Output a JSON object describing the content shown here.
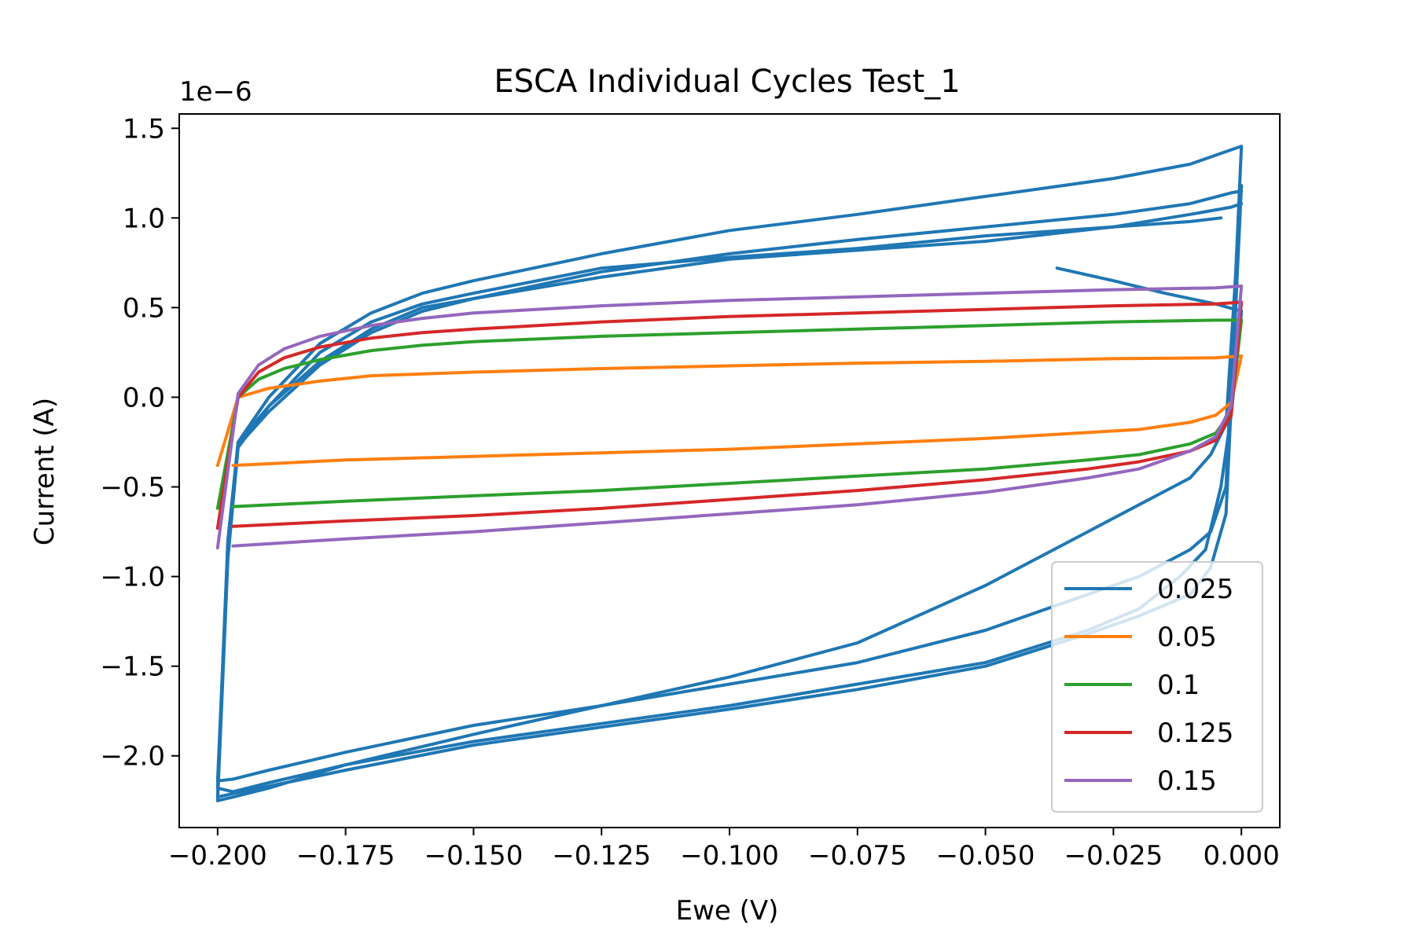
{
  "chart_data": {
    "type": "line",
    "title": "ESCA Individual Cycles Test_1",
    "xlabel": "Ewe (V)",
    "ylabel": "Current (A)",
    "y_offset_text": "1e−6",
    "xlim": [
      -0.2075,
      0.0075
    ],
    "ylim": [
      -2.4,
      1.58
    ],
    "x_ticks": [
      -0.2,
      -0.175,
      -0.15,
      -0.125,
      -0.1,
      -0.075,
      -0.05,
      -0.025,
      0.0
    ],
    "x_tick_labels": [
      "−0.200",
      "−0.175",
      "−0.150",
      "−0.125",
      "−0.100",
      "−0.075",
      "−0.050",
      "−0.025",
      "0.000"
    ],
    "y_ticks": [
      -2.0,
      -1.5,
      -1.0,
      -0.5,
      0.0,
      0.5,
      1.0,
      1.5
    ],
    "y_tick_labels": [
      "−2.0",
      "−1.5",
      "−1.0",
      "−0.5",
      "0.0",
      "0.5",
      "1.0",
      "1.5"
    ],
    "grid": false,
    "legend_position": "lower-right",
    "series": [
      {
        "name": "0.025",
        "color": "#1f77b4",
        "cycles": [
          {
            "x": [
              -0.036,
              -0.025,
              -0.015,
              -0.005,
              0.0,
              -0.002,
              -0.004,
              -0.007,
              -0.012,
              -0.02,
              -0.03,
              -0.05,
              -0.075,
              -0.1,
              -0.125,
              -0.15,
              -0.175,
              -0.19,
              -0.197,
              -0.2,
              -0.198,
              -0.196,
              -0.19,
              -0.18,
              -0.17,
              -0.16,
              -0.15,
              -0.125,
              -0.1,
              -0.075,
              -0.05,
              -0.025,
              -0.01,
              -0.002,
              0.0
            ],
            "y": [
              0.72,
              0.65,
              0.58,
              0.52,
              0.48,
              -0.1,
              -0.5,
              -0.85,
              -1.0,
              -1.18,
              -1.3,
              -1.48,
              -1.6,
              -1.72,
              -1.82,
              -1.92,
              -2.05,
              -2.15,
              -2.2,
              -2.18,
              -0.8,
              -0.25,
              -0.05,
              0.2,
              0.38,
              0.5,
              0.55,
              0.67,
              0.77,
              0.82,
              0.87,
              0.95,
              1.02,
              1.06,
              1.08
            ]
          },
          {
            "x": [
              0.0,
              -0.003,
              -0.006,
              -0.01,
              -0.02,
              -0.03,
              -0.05,
              -0.075,
              -0.1,
              -0.125,
              -0.15,
              -0.175,
              -0.19,
              -0.197,
              -0.2,
              -0.198,
              -0.196,
              -0.19,
              -0.18,
              -0.17,
              -0.16,
              -0.15,
              -0.125,
              -0.1,
              -0.075,
              -0.05,
              -0.025,
              -0.01,
              -0.002,
              0.0
            ],
            "y": [
              1.18,
              -0.65,
              -0.95,
              -1.1,
              -1.22,
              -1.32,
              -1.5,
              -1.63,
              -1.74,
              -1.84,
              -1.94,
              -2.08,
              -2.17,
              -2.21,
              -2.23,
              -0.8,
              -0.27,
              -0.08,
              0.18,
              0.36,
              0.48,
              0.55,
              0.7,
              0.8,
              0.88,
              0.95,
              1.02,
              1.08,
              1.14,
              1.15
            ]
          },
          {
            "x": [
              0.0,
              -0.003,
              -0.006,
              -0.01,
              -0.02,
              -0.03,
              -0.05,
              -0.075,
              -0.1,
              -0.125,
              -0.15,
              -0.175,
              -0.19,
              -0.197,
              -0.2,
              -0.198,
              -0.196,
              -0.19,
              -0.18,
              -0.17,
              -0.16,
              -0.15,
              -0.125,
              -0.1,
              -0.075,
              -0.05,
              -0.025,
              -0.01,
              -0.002,
              0.0
            ],
            "y": [
              1.4,
              -0.5,
              -0.75,
              -0.85,
              -1.0,
              -1.1,
              -1.3,
              -1.48,
              -1.6,
              -1.72,
              -1.83,
              -1.98,
              -2.08,
              -2.13,
              -2.14,
              -0.85,
              -0.25,
              0.0,
              0.3,
              0.47,
              0.58,
              0.65,
              0.8,
              0.93,
              1.02,
              1.12,
              1.22,
              1.3,
              1.38,
              1.4
            ]
          },
          {
            "x": [
              0.0,
              -0.003,
              -0.006,
              -0.01,
              -0.02,
              -0.03,
              -0.05,
              -0.075,
              -0.1,
              -0.125,
              -0.15,
              -0.175,
              -0.19,
              -0.197,
              -0.2,
              -0.198,
              -0.196,
              -0.19,
              -0.18,
              -0.17,
              -0.16,
              -0.15,
              -0.125,
              -0.1,
              -0.075,
              -0.05,
              -0.025,
              -0.01,
              -0.004
            ],
            "y": [
              1.18,
              -0.15,
              -0.32,
              -0.45,
              -0.6,
              -0.75,
              -1.05,
              -1.37,
              -1.56,
              -1.72,
              -1.88,
              -2.05,
              -2.18,
              -2.23,
              -2.25,
              -0.9,
              -0.28,
              -0.05,
              0.25,
              0.42,
              0.52,
              0.58,
              0.72,
              0.78,
              0.83,
              0.9,
              0.95,
              0.98,
              1.0
            ]
          }
        ]
      },
      {
        "name": "0.05",
        "color": "#ff7f0e",
        "cycles": [
          {
            "x": [
              -0.2,
              -0.196,
              -0.19,
              -0.18,
              -0.17,
              -0.15,
              -0.125,
              -0.1,
              -0.075,
              -0.05,
              -0.025,
              -0.005,
              0.0,
              -0.002,
              -0.005,
              -0.01,
              -0.02,
              -0.05,
              -0.075,
              -0.1,
              -0.125,
              -0.15,
              -0.175,
              -0.197
            ],
            "y": [
              -0.38,
              0.0,
              0.05,
              0.09,
              0.12,
              0.14,
              0.16,
              0.175,
              0.19,
              0.2,
              0.215,
              0.22,
              0.23,
              -0.03,
              -0.1,
              -0.14,
              -0.18,
              -0.23,
              -0.26,
              -0.29,
              -0.31,
              -0.33,
              -0.35,
              -0.38
            ]
          }
        ]
      },
      {
        "name": "0.1",
        "color": "#2ca02c",
        "cycles": [
          {
            "x": [
              -0.2,
              -0.196,
              -0.192,
              -0.187,
              -0.18,
              -0.17,
              -0.16,
              -0.15,
              -0.125,
              -0.1,
              -0.075,
              -0.05,
              -0.025,
              -0.005,
              0.0,
              -0.002,
              -0.005,
              -0.01,
              -0.02,
              -0.03,
              -0.05,
              -0.075,
              -0.1,
              -0.125,
              -0.15,
              -0.175,
              -0.197
            ],
            "y": [
              -0.62,
              0.0,
              0.1,
              0.16,
              0.21,
              0.26,
              0.29,
              0.31,
              0.34,
              0.36,
              0.38,
              0.4,
              0.42,
              0.43,
              0.43,
              -0.08,
              -0.2,
              -0.26,
              -0.32,
              -0.35,
              -0.4,
              -0.44,
              -0.48,
              -0.52,
              -0.55,
              -0.58,
              -0.61
            ]
          }
        ]
      },
      {
        "name": "0.125",
        "color": "#d62728",
        "cycles": [
          {
            "x": [
              -0.2,
              -0.196,
              -0.192,
              -0.187,
              -0.18,
              -0.17,
              -0.16,
              -0.15,
              -0.125,
              -0.1,
              -0.075,
              -0.05,
              -0.025,
              -0.005,
              0.0,
              -0.002,
              -0.005,
              -0.01,
              -0.02,
              -0.03,
              -0.05,
              -0.075,
              -0.1,
              -0.125,
              -0.15,
              -0.175,
              -0.197
            ],
            "y": [
              -0.73,
              0.0,
              0.14,
              0.22,
              0.28,
              0.33,
              0.36,
              0.38,
              0.42,
              0.45,
              0.47,
              0.49,
              0.51,
              0.52,
              0.53,
              -0.1,
              -0.24,
              -0.3,
              -0.36,
              -0.4,
              -0.46,
              -0.52,
              -0.57,
              -0.62,
              -0.66,
              -0.69,
              -0.72
            ]
          }
        ]
      },
      {
        "name": "0.15",
        "color": "#9467bd",
        "cycles": [
          {
            "x": [
              -0.2,
              -0.196,
              -0.192,
              -0.187,
              -0.18,
              -0.17,
              -0.16,
              -0.15,
              -0.125,
              -0.1,
              -0.075,
              -0.05,
              -0.025,
              -0.005,
              0.0,
              -0.002,
              -0.005,
              -0.01,
              -0.02,
              -0.03,
              -0.05,
              -0.075,
              -0.1,
              -0.125,
              -0.15,
              -0.175,
              -0.197
            ],
            "y": [
              -0.84,
              0.02,
              0.18,
              0.27,
              0.34,
              0.4,
              0.44,
              0.47,
              0.51,
              0.54,
              0.56,
              0.58,
              0.6,
              0.61,
              0.62,
              -0.05,
              -0.22,
              -0.3,
              -0.4,
              -0.45,
              -0.53,
              -0.6,
              -0.65,
              -0.7,
              -0.75,
              -0.79,
              -0.83
            ]
          }
        ]
      }
    ]
  }
}
